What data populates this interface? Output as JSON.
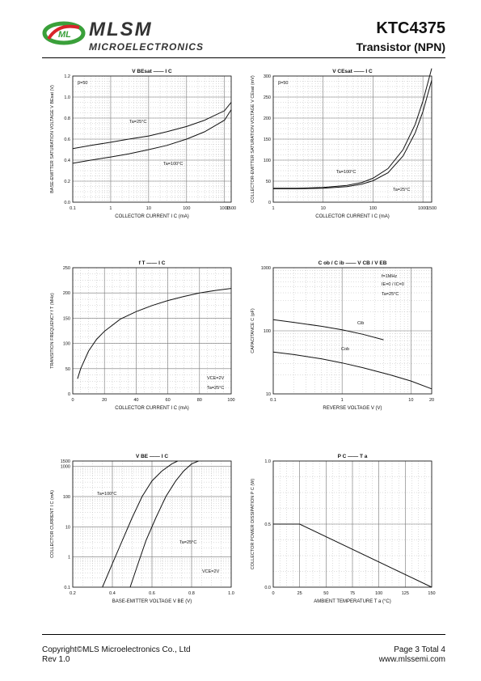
{
  "header": {
    "brand": "MLSM",
    "brand_sub": "MICROELECTRONICS",
    "part_number": "KTC4375",
    "type": "Transistor (NPN)"
  },
  "footer": {
    "copyright": "Copyright©MLS Microelectronics Co., Ltd",
    "rev": "Rev 1.0",
    "page": "Page 3 Total 4",
    "url": "www.mlssemi.com"
  },
  "colors": {
    "ink": "#111111",
    "grid_major": "#777777",
    "grid_minor": "#bbbbbb",
    "logo_green": "#3aa03a",
    "logo_red": "#d8242b"
  },
  "chart_data": [
    {
      "id": "vbe-sat",
      "type": "line",
      "title": "V BEsat —— I C",
      "ylabel": "BASE-EMITTER SATURATION VOLTAGE V BEsat (V)",
      "xlabel": "COLLECTOR CURRENT I C (mA)",
      "xscale": "log",
      "xlim": [
        0.1,
        1500
      ],
      "ylim": [
        0.0,
        1.2
      ],
      "xticks": [
        0.1,
        1,
        10,
        100,
        1000,
        1500
      ],
      "xtick_labels": [
        "0.1",
        "1",
        "10",
        "100",
        "1000",
        "1500"
      ],
      "yticks": [
        0.0,
        0.2,
        0.4,
        0.6,
        0.8,
        1.0,
        1.2
      ],
      "ytick_labels": [
        "0.0",
        "0.2",
        "0.4",
        "0.6",
        "0.8",
        "1.0",
        "1.2"
      ],
      "annotations": [
        "β=50",
        "Ta=25°C",
        "Ta=100°C"
      ],
      "series": [
        {
          "name": "Ta=25°C",
          "x": [
            0.1,
            0.3,
            1,
            3,
            10,
            30,
            100,
            300,
            1000,
            1500
          ],
          "y": [
            0.51,
            0.54,
            0.57,
            0.6,
            0.63,
            0.67,
            0.72,
            0.78,
            0.87,
            0.95
          ]
        },
        {
          "name": "Ta=100°C",
          "x": [
            0.1,
            0.3,
            1,
            3,
            10,
            30,
            100,
            300,
            1000,
            1500
          ],
          "y": [
            0.37,
            0.4,
            0.43,
            0.46,
            0.5,
            0.54,
            0.6,
            0.67,
            0.78,
            0.88
          ]
        }
      ]
    },
    {
      "id": "vce-sat",
      "type": "line",
      "title": "V CEsat —— I C",
      "ylabel": "COLLECTOR-EMITTER SATURATION VOLTAGE V CEsat (mV)",
      "xlabel": "COLLECTOR CURRENT I C (mA)",
      "xscale": "log",
      "xlim": [
        1,
        1500
      ],
      "ylim": [
        0,
        300
      ],
      "xticks": [
        1,
        10,
        100,
        1000,
        1500
      ],
      "xtick_labels": [
        "1",
        "10",
        "100",
        "1000",
        "1500"
      ],
      "yticks": [
        0,
        50,
        100,
        150,
        200,
        250,
        300
      ],
      "ytick_labels": [
        "0",
        "50",
        "100",
        "150",
        "200",
        "250",
        "300"
      ],
      "annotations": [
        "β=50",
        "Ta=100°C",
        "Ta=25°C"
      ],
      "series": [
        {
          "name": "Ta=100°C",
          "x": [
            1,
            3,
            10,
            30,
            60,
            100,
            200,
            400,
            700,
            1000,
            1500
          ],
          "y": [
            33,
            33,
            35,
            40,
            47,
            57,
            80,
            125,
            185,
            240,
            318
          ]
        },
        {
          "name": "Ta=25°C",
          "x": [
            1,
            3,
            10,
            30,
            60,
            100,
            200,
            400,
            700,
            1000,
            1500
          ],
          "y": [
            32,
            32,
            33,
            37,
            43,
            51,
            70,
            110,
            165,
            215,
            290
          ]
        }
      ]
    },
    {
      "id": "ft",
      "type": "line",
      "title": "f T —— I C",
      "ylabel": "TRANSITION FREQUENCY f T (MHz)",
      "xlabel": "COLLECTOR CURRENT I C (mA)",
      "xscale": "linear",
      "xlim": [
        0,
        100
      ],
      "ylim": [
        0,
        250
      ],
      "xticks": [
        0,
        20,
        40,
        60,
        80,
        100
      ],
      "xtick_labels": [
        "0",
        "20",
        "40",
        "60",
        "80",
        "100"
      ],
      "yticks": [
        0,
        50,
        100,
        150,
        200,
        250
      ],
      "ytick_labels": [
        "0",
        "50",
        "100",
        "150",
        "200",
        "250"
      ],
      "annotations": [
        "VCE=2V",
        "Ta=25°C"
      ],
      "series": [
        {
          "name": "fT",
          "x": [
            3,
            5,
            10,
            15,
            20,
            30,
            40,
            50,
            60,
            70,
            80,
            90,
            100
          ],
          "y": [
            30,
            50,
            85,
            108,
            124,
            148,
            163,
            175,
            185,
            193,
            200,
            205,
            209
          ]
        }
      ]
    },
    {
      "id": "cap",
      "type": "line",
      "title": "C ob / C ib —— V CB / V EB",
      "ylabel": "CAPACITANCE C (pF)",
      "xlabel": "REVERSE VOLTAGE V (V)",
      "xscale": "log",
      "yscale": "log",
      "xlim": [
        0.1,
        20
      ],
      "ylim": [
        10,
        1000
      ],
      "xticks": [
        0.1,
        1,
        10,
        20
      ],
      "xtick_labels": [
        "0.1",
        "1",
        "10",
        "20"
      ],
      "yticks": [
        10,
        100,
        1000
      ],
      "ytick_labels": [
        "10",
        "100",
        "1000"
      ],
      "annotations": [
        "f=1MHz",
        "IE=0 / IC=0",
        "Ta=25°C",
        "Cib",
        "Cob"
      ],
      "series": [
        {
          "name": "Cib",
          "x": [
            0.1,
            0.2,
            0.5,
            1,
            2,
            4
          ],
          "y": [
            150,
            136,
            118,
            104,
            88,
            72
          ]
        },
        {
          "name": "Cob",
          "x": [
            0.1,
            0.2,
            0.5,
            1,
            2,
            5,
            10,
            20
          ],
          "y": [
            46,
            42,
            36,
            31,
            26,
            20,
            16,
            12
          ]
        }
      ]
    },
    {
      "id": "vbe-ic",
      "type": "line",
      "title": "V BE —— I C",
      "ylabel": "COLLECTOR CURRENT I C (mA)",
      "xlabel": "BASE-EMITTER VOLTAGE V BE (V)",
      "xscale": "linear",
      "yscale": "log",
      "xlim": [
        0.2,
        1.0
      ],
      "ylim": [
        0.1,
        1500
      ],
      "xticks": [
        0.2,
        0.4,
        0.6,
        0.8,
        1.0
      ],
      "xtick_labels": [
        "0.2",
        "0.4",
        "0.6",
        "0.8",
        "1.0"
      ],
      "yticks": [
        0.1,
        1,
        10,
        100,
        1000,
        1500
      ],
      "ytick_labels": [
        "0.1",
        "1",
        "10",
        "100",
        "1000",
        "1500"
      ],
      "annotations": [
        "Ta=100°C",
        "Ta=25°C",
        "VCE=2V"
      ],
      "series": [
        {
          "name": "Ta=100°C",
          "x": [
            0.35,
            0.4,
            0.45,
            0.5,
            0.55,
            0.6,
            0.65,
            0.7,
            0.73
          ],
          "y": [
            0.1,
            0.6,
            3.5,
            20,
            100,
            330,
            700,
            1200,
            1500
          ]
        },
        {
          "name": "Ta=25°C",
          "x": [
            0.49,
            0.53,
            0.57,
            0.62,
            0.67,
            0.72,
            0.76,
            0.8,
            0.835
          ],
          "y": [
            0.1,
            0.6,
            3.5,
            20,
            100,
            330,
            700,
            1200,
            1500
          ]
        }
      ]
    },
    {
      "id": "pc-ta",
      "type": "line",
      "title": "P C —— T a",
      "ylabel": "COLLECTOR POWER DISSIPATION P C (W)",
      "xlabel": "AMBIENT TEMPERATURE T a (°C)",
      "xscale": "linear",
      "xlim": [
        0,
        150
      ],
      "ylim": [
        0.0,
        1.0
      ],
      "xticks": [
        0,
        25,
        50,
        75,
        100,
        125,
        150
      ],
      "xtick_labels": [
        "0",
        "25",
        "50",
        "75",
        "100",
        "125",
        "150"
      ],
      "yticks": [
        0.0,
        0.5,
        1.0
      ],
      "ytick_labels": [
        "0.0",
        "0.5",
        "1.0"
      ],
      "annotations": [],
      "series": [
        {
          "name": "PC",
          "x": [
            0,
            25,
            150
          ],
          "y": [
            0.5,
            0.5,
            0.0
          ]
        }
      ]
    }
  ]
}
